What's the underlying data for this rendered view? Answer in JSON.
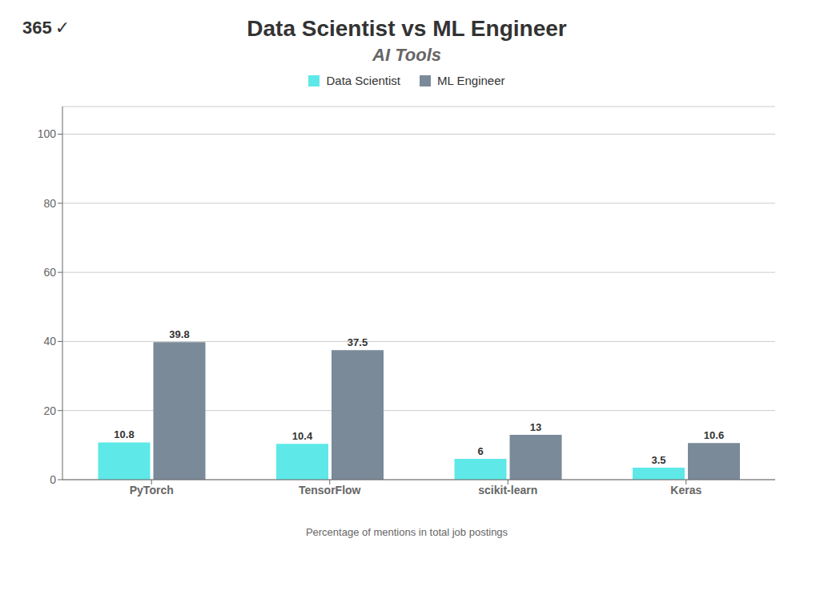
{
  "chart_data": {
    "type": "bar",
    "title": "Data Scientist vs ML Engineer",
    "subtitle": "AI Tools",
    "categories": [
      "PyTorch",
      "TensorFlow",
      "scikit-learn",
      "Keras"
    ],
    "series": [
      {
        "name": "Data Scientist",
        "color": "#5ee8e8",
        "values": [
          10.8,
          10.4,
          6,
          3.5
        ]
      },
      {
        "name": "ML Engineer",
        "color": "#7a8a99",
        "values": [
          39.8,
          37.5,
          13,
          10.6
        ]
      }
    ],
    "ylim": [
      0,
      108
    ],
    "yticks": [
      0,
      20,
      40,
      60,
      80,
      100
    ],
    "grid": true,
    "legend": "top",
    "data_labels": true,
    "annotations": [
      "365",
      "✓"
    ],
    "footer": "Percentage of mentions in total job postings"
  }
}
